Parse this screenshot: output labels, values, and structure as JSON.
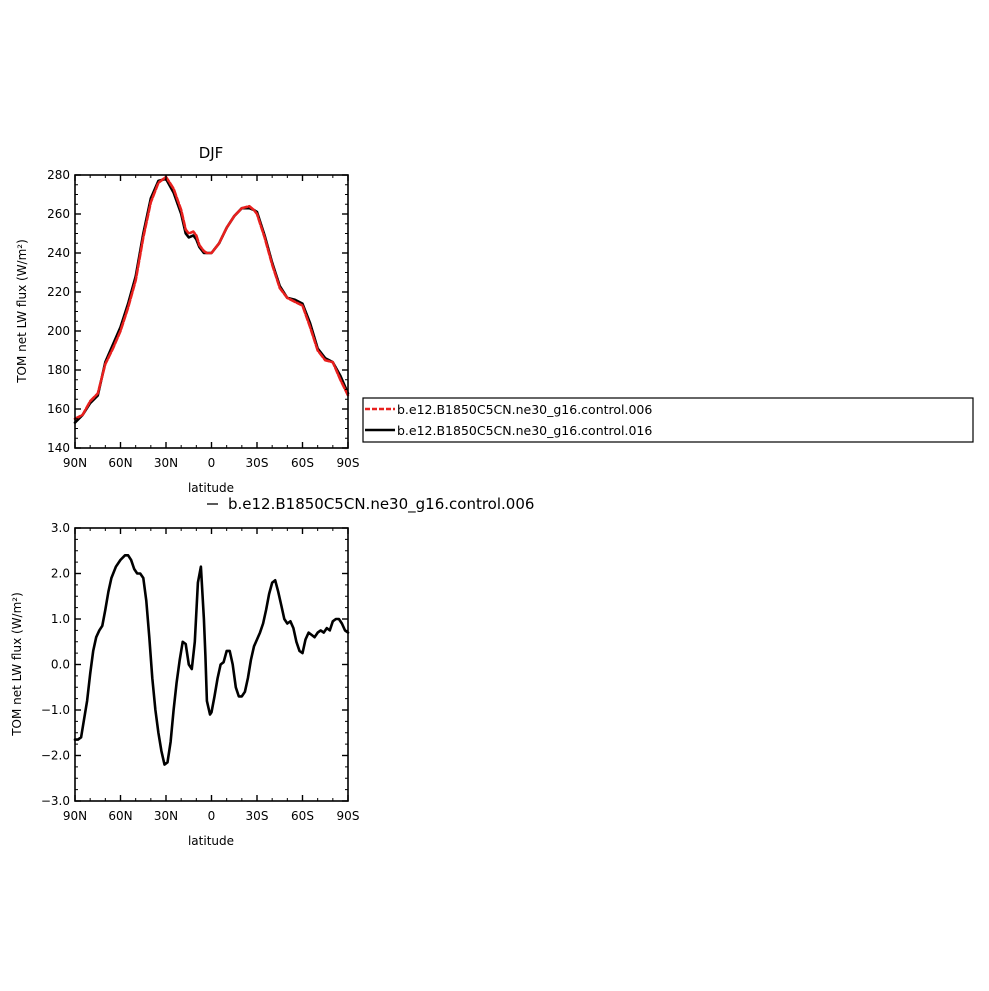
{
  "colors": {
    "control_006": "#e8201e",
    "control_016": "#000000",
    "difference": "#000000"
  },
  "chart_data": [
    {
      "type": "line",
      "title": "DJF",
      "xlabel": "latitude",
      "ylabel": "TOM net LW flux (W/m²)",
      "xlim": [
        90,
        -90
      ],
      "ylim": [
        140,
        280
      ],
      "x_tick_values": [
        90,
        60,
        30,
        0,
        -30,
        -60,
        -90
      ],
      "x_tick_labels": [
        "90N",
        "60N",
        "30N",
        "0",
        "30S",
        "60S",
        "90S"
      ],
      "y_tick_values": [
        140,
        160,
        180,
        200,
        220,
        240,
        260,
        280
      ],
      "y_tick_labels": [
        "140",
        "160",
        "180",
        "200",
        "220",
        "240",
        "260",
        "280"
      ],
      "legend": {
        "placement": "right",
        "entries": [
          {
            "label": "b.e12.B1850C5CN.ne30_g16.control.006",
            "color": "#e8201e",
            "style": "dashed"
          },
          {
            "label": "b.e12.B1850C5CN.ne30_g16.control.016",
            "color": "#000000",
            "style": "solid"
          }
        ]
      },
      "series": [
        {
          "color": "#e8201e",
          "style": "dashed",
          "x": [
            90,
            85,
            80,
            75,
            70,
            65,
            60,
            55,
            50,
            45,
            40,
            35,
            30,
            25,
            20,
            17,
            15,
            12,
            10,
            8,
            5,
            3,
            0,
            -5,
            -10,
            -15,
            -20,
            -25,
            -28,
            -30,
            -35,
            -40,
            -45,
            -50,
            -55,
            -60,
            -65,
            -70,
            -75,
            -80,
            -85,
            -90
          ],
          "y": [
            155,
            157,
            164,
            168,
            183,
            191,
            200,
            212,
            226,
            248,
            266,
            276,
            279,
            273,
            262,
            252,
            250,
            251,
            249,
            244,
            241,
            240,
            240,
            245,
            253,
            259,
            263,
            264,
            262,
            260,
            248,
            234,
            222,
            217,
            215,
            213,
            202,
            190,
            185,
            184,
            175,
            167
          ]
        },
        {
          "color": "#000000",
          "style": "solid",
          "x": [
            90,
            85,
            80,
            75,
            70,
            65,
            60,
            55,
            50,
            45,
            40,
            35,
            30,
            25,
            20,
            17,
            15,
            12,
            10,
            8,
            5,
            3,
            0,
            -5,
            -10,
            -15,
            -20,
            -25,
            -28,
            -30,
            -35,
            -40,
            -45,
            -50,
            -55,
            -60,
            -65,
            -70,
            -75,
            -80,
            -85,
            -90
          ],
          "y": [
            153,
            157,
            163,
            167,
            184,
            193,
            202,
            214,
            228,
            250,
            268,
            277,
            278,
            271,
            260,
            250,
            248,
            249,
            247,
            243,
            240,
            240,
            240,
            245,
            253,
            259,
            263,
            263,
            262,
            261,
            249,
            235,
            223,
            217,
            216,
            214,
            204,
            191,
            186,
            184,
            177,
            168
          ]
        }
      ]
    },
    {
      "type": "line",
      "title": "b.e12.B1850C5CN.ne30_g16.control.006",
      "xlabel": "latitude",
      "ylabel": "TOM net LW flux (W/m²)",
      "xlim": [
        90,
        -90
      ],
      "ylim": [
        -3.0,
        3.0
      ],
      "x_tick_values": [
        90,
        60,
        30,
        0,
        -30,
        -60,
        -90
      ],
      "x_tick_labels": [
        "90N",
        "60N",
        "30N",
        "0",
        "30S",
        "60S",
        "90S"
      ],
      "y_tick_values": [
        -3.0,
        -2.0,
        -1.0,
        0.0,
        1.0,
        2.0,
        3.0
      ],
      "y_tick_labels": [
        "−3.0",
        "−2.0",
        "−1.0",
        "0.0",
        "1.0",
        "2.0",
        "3.0"
      ],
      "series": [
        {
          "color": "#000000",
          "style": "solid",
          "x": [
            90,
            88,
            86,
            84,
            82,
            80,
            78,
            76,
            74,
            72,
            70,
            68,
            66,
            63,
            60,
            57,
            55,
            53,
            51,
            49,
            47,
            45,
            43,
            41,
            39,
            37,
            35,
            33,
            31,
            29,
            27,
            25,
            23,
            21,
            19,
            17,
            15,
            13,
            11,
            9,
            7,
            5,
            4,
            3,
            1,
            0,
            -2,
            -4,
            -6,
            -8,
            -10,
            -12,
            -14,
            -16,
            -18,
            -20,
            -22,
            -24,
            -26,
            -28,
            -30,
            -32,
            -34,
            -36,
            -38,
            -40,
            -42,
            -44,
            -46,
            -48,
            -50,
            -52,
            -54,
            -56,
            -58,
            -60,
            -62,
            -64,
            -66,
            -68,
            -70,
            -72,
            -74,
            -76,
            -78,
            -80,
            -82,
            -84,
            -86,
            -88,
            -90
          ],
          "y": [
            -1.65,
            -1.65,
            -1.6,
            -1.2,
            -0.8,
            -0.2,
            0.3,
            0.6,
            0.75,
            0.85,
            1.2,
            1.6,
            1.9,
            2.15,
            2.3,
            2.4,
            2.4,
            2.3,
            2.1,
            2.0,
            2.0,
            1.9,
            1.4,
            0.6,
            -0.3,
            -1.0,
            -1.5,
            -1.9,
            -2.2,
            -2.15,
            -1.7,
            -1.0,
            -0.4,
            0.1,
            0.5,
            0.45,
            0.0,
            -0.1,
            0.5,
            1.8,
            2.15,
            1.0,
            0.2,
            -0.8,
            -1.1,
            -1.05,
            -0.7,
            -0.3,
            0.0,
            0.05,
            0.3,
            0.3,
            0.0,
            -0.5,
            -0.7,
            -0.7,
            -0.6,
            -0.3,
            0.1,
            0.4,
            0.55,
            0.7,
            0.9,
            1.2,
            1.55,
            1.8,
            1.85,
            1.6,
            1.3,
            1.0,
            0.9,
            0.95,
            0.8,
            0.5,
            0.3,
            0.25,
            0.55,
            0.7,
            0.65,
            0.6,
            0.7,
            0.75,
            0.7,
            0.8,
            0.75,
            0.95,
            1.0,
            1.0,
            0.9,
            0.75,
            0.7
          ]
        }
      ]
    }
  ]
}
